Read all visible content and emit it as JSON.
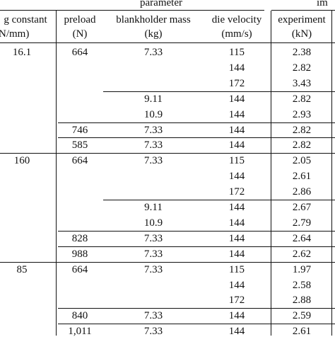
{
  "header": {
    "group_parameter": "parameter",
    "group_impact": "im",
    "col_spring_line1": "g constant",
    "col_spring_line2": "N/mm)",
    "col_preload_line1": "preload",
    "col_preload_line2": "(N)",
    "col_mass_line1": "blankholder mass",
    "col_mass_line2": "(kg)",
    "col_velocity_line1": "die velocity",
    "col_velocity_line2": "(mm/s)",
    "col_experiment_line1": "experiment",
    "col_experiment_line2": "(kN)"
  },
  "rows": [
    {
      "spring": "16.1",
      "preload": "664",
      "mass": "7.33",
      "velocity": "115",
      "experiment": "2.38"
    },
    {
      "spring": "",
      "preload": "",
      "mass": "",
      "velocity": "144",
      "experiment": "2.82"
    },
    {
      "spring": "",
      "preload": "",
      "mass": "",
      "velocity": "172",
      "experiment": "3.43"
    },
    {
      "spring": "",
      "preload": "",
      "mass": "9.11",
      "velocity": "144",
      "experiment": "2.82"
    },
    {
      "spring": "",
      "preload": "",
      "mass": "10.9",
      "velocity": "144",
      "experiment": "2.93"
    },
    {
      "spring": "",
      "preload": "746",
      "mass": "7.33",
      "velocity": "144",
      "experiment": "2.82"
    },
    {
      "spring": "",
      "preload": "585",
      "mass": "7.33",
      "velocity": "144",
      "experiment": "2.82"
    },
    {
      "spring": "160",
      "preload": "664",
      "mass": "7.33",
      "velocity": "115",
      "experiment": "2.05"
    },
    {
      "spring": "",
      "preload": "",
      "mass": "",
      "velocity": "144",
      "experiment": "2.61"
    },
    {
      "spring": "",
      "preload": "",
      "mass": "",
      "velocity": "172",
      "experiment": "2.86"
    },
    {
      "spring": "",
      "preload": "",
      "mass": "9.11",
      "velocity": "144",
      "experiment": "2.67"
    },
    {
      "spring": "",
      "preload": "",
      "mass": "10.9",
      "velocity": "144",
      "experiment": "2.79"
    },
    {
      "spring": "",
      "preload": "828",
      "mass": "7.33",
      "velocity": "144",
      "experiment": "2.64"
    },
    {
      "spring": "",
      "preload": "988",
      "mass": "7.33",
      "velocity": "144",
      "experiment": "2.62"
    },
    {
      "spring": "85",
      "preload": "664",
      "mass": "7.33",
      "velocity": "115",
      "experiment": "1.97"
    },
    {
      "spring": "",
      "preload": "",
      "mass": "",
      "velocity": "144",
      "experiment": "2.58"
    },
    {
      "spring": "",
      "preload": "",
      "mass": "",
      "velocity": "172",
      "experiment": "2.88"
    },
    {
      "spring": "",
      "preload": "840",
      "mass": "7.33",
      "velocity": "144",
      "experiment": "2.59"
    },
    {
      "spring": "",
      "preload": "1,011",
      "mass": "7.33",
      "velocity": "144",
      "experiment": "2.61"
    }
  ]
}
